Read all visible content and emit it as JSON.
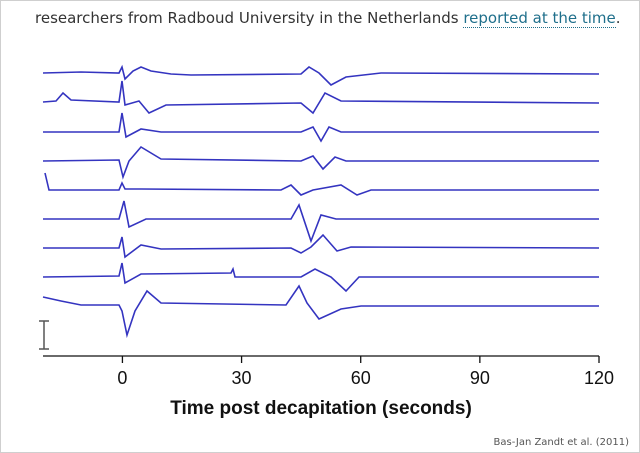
{
  "article": {
    "text": "researchers from Radboud University in the Netherlands",
    "link": "reported at the time",
    "end": "."
  },
  "chart_data": {
    "type": "line",
    "xlabel": "Time post decapitation (seconds)",
    "xlim": [
      -20,
      120
    ],
    "xticks": [
      0,
      30,
      60,
      90,
      120
    ]
  },
  "credit": "Bas-Jan Zandt et al. (2011)"
}
